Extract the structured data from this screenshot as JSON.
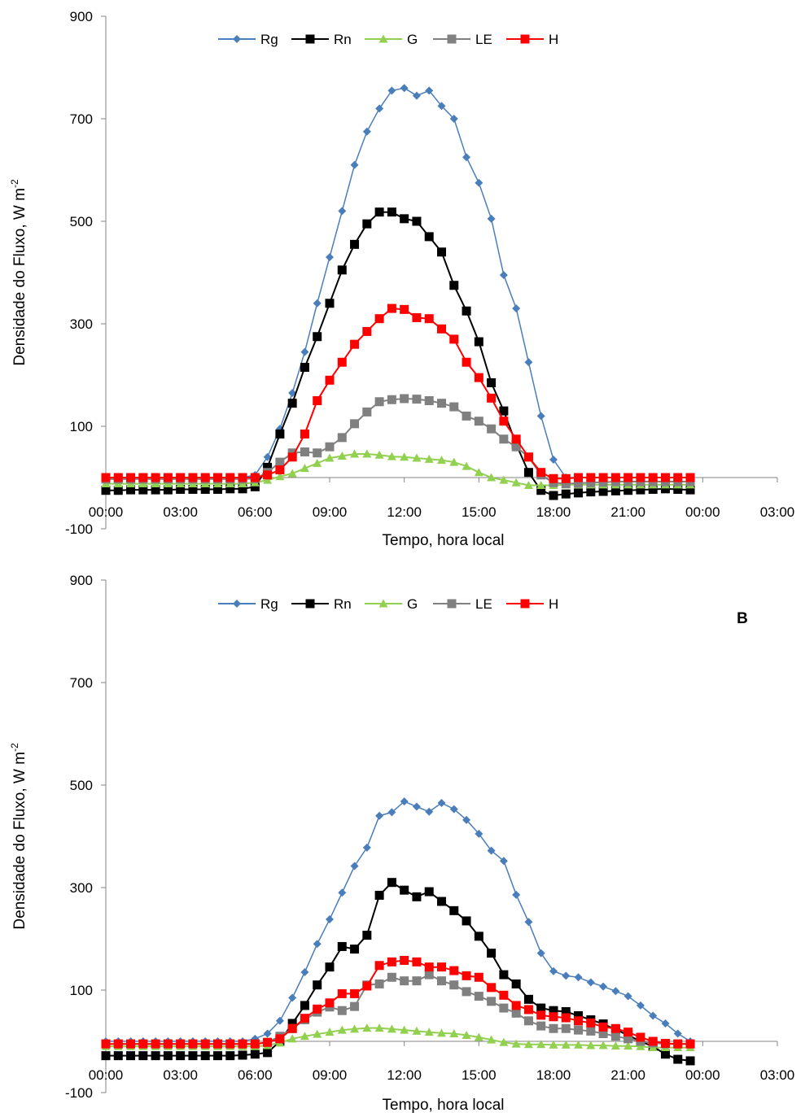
{
  "chart_data": [
    {
      "type": "line",
      "title": "",
      "xlabel": "Tempo, hora local",
      "ylabel": "Densidade do Fluxo, W m",
      "ylabel_sup": "-2",
      "ylim": [
        -100,
        900
      ],
      "yticks": [
        -100,
        100,
        300,
        500,
        700,
        900
      ],
      "xlim": [
        0,
        27
      ],
      "xticks": [
        "00:00",
        "03:00",
        "06:00",
        "09:00",
        "12:00",
        "15:00",
        "18:00",
        "21:00",
        "00:00",
        "03:00"
      ],
      "grid": false,
      "legend_position": "top",
      "panel_label": "",
      "x_hours": [
        0,
        0.5,
        1,
        1.5,
        2,
        2.5,
        3,
        3.5,
        4,
        4.5,
        5,
        5.5,
        6,
        6.5,
        7,
        7.5,
        8,
        8.5,
        9,
        9.5,
        10,
        10.5,
        11,
        11.5,
        12,
        12.5,
        13,
        13.5,
        14,
        14.5,
        15,
        15.5,
        16,
        16.5,
        17,
        17.5,
        18,
        18.5,
        19,
        19.5,
        20,
        20.5,
        21,
        21.5,
        22,
        22.5,
        23,
        23.5
      ],
      "series": [
        {
          "name": "Rg",
          "color": "#4A7EBB",
          "marker": "diamond",
          "values": [
            0,
            0,
            0,
            0,
            0,
            0,
            0,
            0,
            0,
            0,
            0,
            0,
            5,
            40,
            95,
            165,
            245,
            340,
            430,
            520,
            610,
            675,
            720,
            755,
            760,
            745,
            755,
            725,
            700,
            625,
            575,
            505,
            395,
            330,
            225,
            120,
            35,
            0,
            0,
            0,
            0,
            0,
            0,
            0,
            0,
            0,
            0,
            0
          ]
        },
        {
          "name": "Rn",
          "color": "#000000",
          "marker": "square",
          "values": [
            -25,
            -25,
            -24,
            -24,
            -24,
            -24,
            -23,
            -23,
            -23,
            -23,
            -22,
            -22,
            -18,
            20,
            85,
            145,
            215,
            275,
            340,
            405,
            455,
            495,
            518,
            518,
            505,
            500,
            470,
            440,
            375,
            325,
            265,
            185,
            130,
            65,
            10,
            -25,
            -35,
            -32,
            -30,
            -28,
            -27,
            -26,
            -25,
            -24,
            -23,
            -22,
            -23,
            -24
          ]
        },
        {
          "name": "G",
          "color": "#92D050",
          "marker": "triangle",
          "values": [
            -12,
            -12,
            -12,
            -12,
            -12,
            -12,
            -12,
            -12,
            -12,
            -12,
            -12,
            -12,
            -10,
            -5,
            2,
            8,
            18,
            28,
            38,
            42,
            46,
            46,
            44,
            41,
            40,
            38,
            36,
            34,
            30,
            22,
            10,
            0,
            -5,
            -10,
            -15,
            -15,
            -15,
            -14,
            -14,
            -14,
            -14,
            -14,
            -14,
            -14,
            -14,
            -14,
            -14,
            -14
          ]
        },
        {
          "name": "LE",
          "color": "#808080",
          "marker": "square",
          "values": [
            -3,
            -3,
            -3,
            -3,
            -3,
            -3,
            -3,
            -3,
            -3,
            -3,
            -3,
            -3,
            -2,
            10,
            30,
            48,
            50,
            48,
            60,
            78,
            105,
            128,
            148,
            152,
            154,
            153,
            150,
            145,
            138,
            120,
            110,
            95,
            75,
            60,
            40,
            5,
            -10,
            -12,
            -11,
            -10,
            -9,
            -8,
            -8,
            -8,
            -8,
            -8,
            -8,
            -8
          ]
        },
        {
          "name": "H",
          "color": "#FF0000",
          "marker": "square",
          "values": [
            0,
            0,
            0,
            0,
            0,
            0,
            0,
            0,
            0,
            0,
            0,
            0,
            0,
            5,
            15,
            40,
            85,
            150,
            190,
            225,
            260,
            285,
            310,
            330,
            328,
            312,
            310,
            290,
            270,
            225,
            195,
            155,
            110,
            75,
            40,
            10,
            -2,
            -2,
            0,
            0,
            0,
            0,
            0,
            0,
            0,
            0,
            0,
            0
          ]
        }
      ]
    },
    {
      "type": "line",
      "title": "",
      "xlabel": "Tempo, hora local",
      "ylabel": "Densidade do Fluxo, W m",
      "ylabel_sup": "-2",
      "ylim": [
        -100,
        900
      ],
      "yticks": [
        -100,
        100,
        300,
        500,
        700,
        900
      ],
      "xlim": [
        0,
        27
      ],
      "xticks": [
        "00:00",
        "03:00",
        "06:00",
        "09:00",
        "12:00",
        "15:00",
        "18:00",
        "21:00",
        "00:00",
        "03:00"
      ],
      "grid": false,
      "legend_position": "top",
      "panel_label": "B",
      "x_hours": [
        0,
        0.5,
        1,
        1.5,
        2,
        2.5,
        3,
        3.5,
        4,
        4.5,
        5,
        5.5,
        6,
        6.5,
        7,
        7.5,
        8,
        8.5,
        9,
        9.5,
        10,
        10.5,
        11,
        11.5,
        12,
        12.5,
        13,
        13.5,
        14,
        14.5,
        15,
        15.5,
        16,
        16.5,
        17,
        17.5,
        18,
        18.5,
        19,
        19.5,
        20,
        20.5,
        21,
        21.5,
        22,
        22.5,
        23,
        23.5
      ],
      "series": [
        {
          "name": "Rg",
          "color": "#4A7EBB",
          "marker": "diamond",
          "values": [
            0,
            0,
            0,
            0,
            0,
            0,
            0,
            0,
            0,
            0,
            0,
            0,
            5,
            15,
            40,
            85,
            135,
            190,
            238,
            290,
            342,
            378,
            440,
            447,
            468,
            458,
            448,
            465,
            453,
            432,
            405,
            372,
            352,
            286,
            233,
            172,
            137,
            128,
            125,
            115,
            107,
            98,
            88,
            70,
            50,
            35,
            15,
            0
          ]
        },
        {
          "name": "Rn",
          "color": "#000000",
          "marker": "square",
          "values": [
            -28,
            -28,
            -28,
            -28,
            -28,
            -28,
            -28,
            -28,
            -28,
            -28,
            -28,
            -27,
            -25,
            -22,
            0,
            35,
            70,
            110,
            145,
            185,
            180,
            207,
            285,
            310,
            295,
            282,
            292,
            273,
            255,
            235,
            205,
            172,
            130,
            112,
            82,
            65,
            60,
            58,
            50,
            42,
            34,
            23,
            12,
            0,
            -10,
            -25,
            -35,
            -38
          ]
        },
        {
          "name": "G",
          "color": "#92D050",
          "marker": "triangle",
          "values": [
            -10,
            -10,
            -10,
            -10,
            -10,
            -10,
            -10,
            -10,
            -10,
            -10,
            -10,
            -10,
            -10,
            -8,
            -3,
            5,
            10,
            14,
            18,
            22,
            24,
            26,
            26,
            24,
            22,
            20,
            18,
            16,
            15,
            12,
            8,
            3,
            -2,
            -5,
            -6,
            -6,
            -7,
            -7,
            -7,
            -8,
            -8,
            -9,
            -9,
            -10,
            -12,
            -12,
            -12,
            -12
          ]
        },
        {
          "name": "LE",
          "color": "#808080",
          "marker": "square",
          "values": [
            -5,
            -5,
            -5,
            -5,
            -5,
            -5,
            -5,
            -5,
            -5,
            -5,
            -5,
            -5,
            -5,
            -2,
            10,
            25,
            42,
            57,
            67,
            60,
            68,
            110,
            112,
            125,
            118,
            118,
            130,
            118,
            110,
            97,
            88,
            78,
            65,
            55,
            40,
            30,
            25,
            25,
            22,
            20,
            15,
            10,
            5,
            0,
            -3,
            -5,
            -5,
            -5
          ]
        },
        {
          "name": "H",
          "color": "#FF0000",
          "marker": "square",
          "values": [
            -5,
            -5,
            -5,
            -5,
            -5,
            -5,
            -5,
            -5,
            -5,
            -5,
            -5,
            -5,
            -5,
            -2,
            5,
            25,
            45,
            63,
            75,
            93,
            93,
            108,
            148,
            155,
            158,
            155,
            145,
            145,
            138,
            128,
            125,
            105,
            90,
            70,
            62,
            51,
            48,
            46,
            40,
            36,
            28,
            25,
            18,
            8,
            0,
            -4,
            -5,
            -5
          ]
        }
      ]
    }
  ]
}
